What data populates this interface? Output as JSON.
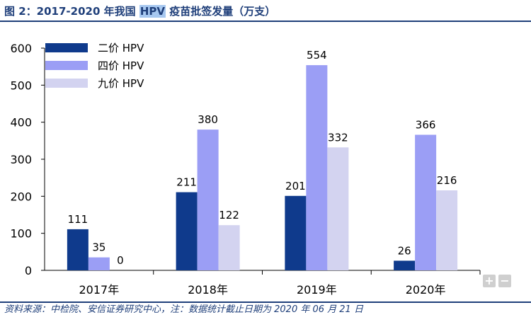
{
  "header": {
    "title_pre": "图 2：2017-2020 年我国",
    "title_hl": "HPV",
    "title_post": "疫苗批签发量（万支）"
  },
  "footer": {
    "source": "资料来源：中检院、安信证券研究中心，注：数据统计截止日期为 2020 年 06 月 21 日"
  },
  "controls": {
    "zoom_in": "+",
    "zoom_out": "−"
  },
  "chart_data": {
    "type": "bar",
    "categories": [
      "2017年",
      "2018年",
      "2019年",
      "2020年"
    ],
    "series": [
      {
        "name": "二价 HPV",
        "color": "#0f3a8c",
        "values": [
          111,
          211,
          201,
          26
        ]
      },
      {
        "name": "四价 HPV",
        "color": "#9b9ef5",
        "values": [
          35,
          380,
          554,
          366
        ]
      },
      {
        "name": "九价 HPV",
        "color": "#d3d3f0",
        "values": [
          0,
          122,
          332,
          216
        ]
      }
    ],
    "ylim": [
      0,
      600
    ],
    "yticks": [
      0,
      100,
      200,
      300,
      400,
      500,
      600
    ],
    "grid": false,
    "legend": "top-left",
    "data_labels": true
  }
}
